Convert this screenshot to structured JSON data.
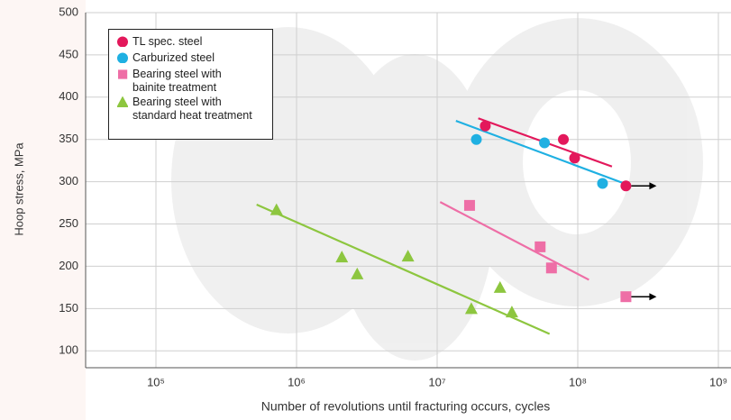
{
  "chart_data": {
    "type": "scatter",
    "x_label": "Number of revolutions until fracturing occurs, cycles",
    "y_label": "Hoop stress, MPa",
    "xscale": "log",
    "xlim": [
      31623,
      1000000000
    ],
    "ylim": [
      80,
      500
    ],
    "xticks": [
      {
        "value": 100000,
        "label": "10⁵"
      },
      {
        "value": 1000000,
        "label": "10⁶"
      },
      {
        "value": 10000000,
        "label": "10⁷"
      },
      {
        "value": 100000000,
        "label": "10⁸"
      },
      {
        "value": 1000000000,
        "label": "10⁹"
      }
    ],
    "yticks": [
      100,
      150,
      200,
      250,
      300,
      350,
      400,
      450,
      500
    ],
    "grid": true,
    "legend": "upper left",
    "series": [
      {
        "name": "TL spec. steel",
        "color": "#e3185b",
        "marker": "circle",
        "runout_last": true,
        "x": [
          22000000,
          79000000,
          95000000,
          220000000
        ],
        "values": [
          366,
          350,
          328,
          295
        ],
        "fit": {
          "x": [
            19600000,
            175000000
          ],
          "y": [
            375,
            318
          ]
        }
      },
      {
        "name": "Carburized steel",
        "color": "#1fb0e2",
        "marker": "circle",
        "runout_last": false,
        "x": [
          19000000,
          58000000,
          150000000
        ],
        "values": [
          350,
          346,
          298
        ],
        "fit": {
          "x": [
            13600000,
            230000000
          ],
          "y": [
            372,
            296
          ]
        }
      },
      {
        "name": "Bearing steel with\nbainite treatment",
        "color": "#ee6ea6",
        "marker": "square",
        "runout_last": true,
        "x": [
          17000000,
          54000000,
          65000000,
          220000000
        ],
        "values": [
          272,
          223,
          198,
          164
        ],
        "fit": {
          "x": [
            10500000,
            120000000
          ],
          "y": [
            276,
            184
          ]
        }
      },
      {
        "name": "Bearing steel with\nstandard heat treatment",
        "color": "#8dc63f",
        "marker": "triangle",
        "runout_last": false,
        "x": [
          720000,
          2100000,
          2700000,
          6200000,
          17500000,
          28000000,
          34000000
        ],
        "values": [
          267,
          211,
          191,
          212,
          150,
          175,
          146
        ],
        "fit": {
          "x": [
            520000,
            63000000
          ],
          "y": [
            273,
            120
          ]
        }
      }
    ]
  }
}
